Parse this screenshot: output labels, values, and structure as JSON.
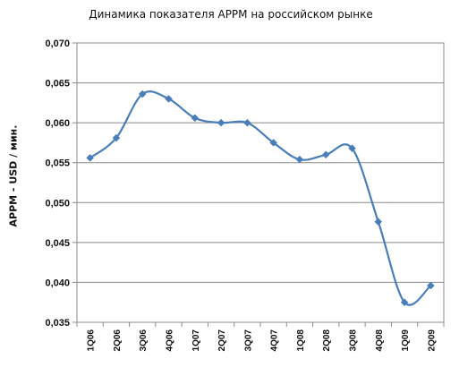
{
  "chart_data": {
    "type": "line",
    "title": "Динамика показателя АРРМ на российском рынке",
    "xlabel": "",
    "ylabel": "АРРМ - USD / мин.",
    "categories": [
      "1Q06",
      "2Q06",
      "3Q06",
      "4Q06",
      "1Q07",
      "2Q07",
      "3Q07",
      "4Q07",
      "1Q08",
      "2Q08",
      "3Q08",
      "4Q08",
      "1Q09",
      "2Q09"
    ],
    "series": [
      {
        "values": [
          0.0556,
          0.0581,
          0.0636,
          0.063,
          0.0606,
          0.06,
          0.06,
          0.0575,
          0.0554,
          0.056,
          0.0568,
          0.0476,
          0.0375,
          0.0396
        ]
      }
    ],
    "ylim": [
      0.035,
      0.07
    ],
    "yticks": [
      "0,070",
      "0,065",
      "0,060",
      "0,055",
      "0,050",
      "0,045",
      "0,040",
      "0,035"
    ],
    "grid": true,
    "legend": "none",
    "line_color": "#4a7ebb"
  }
}
